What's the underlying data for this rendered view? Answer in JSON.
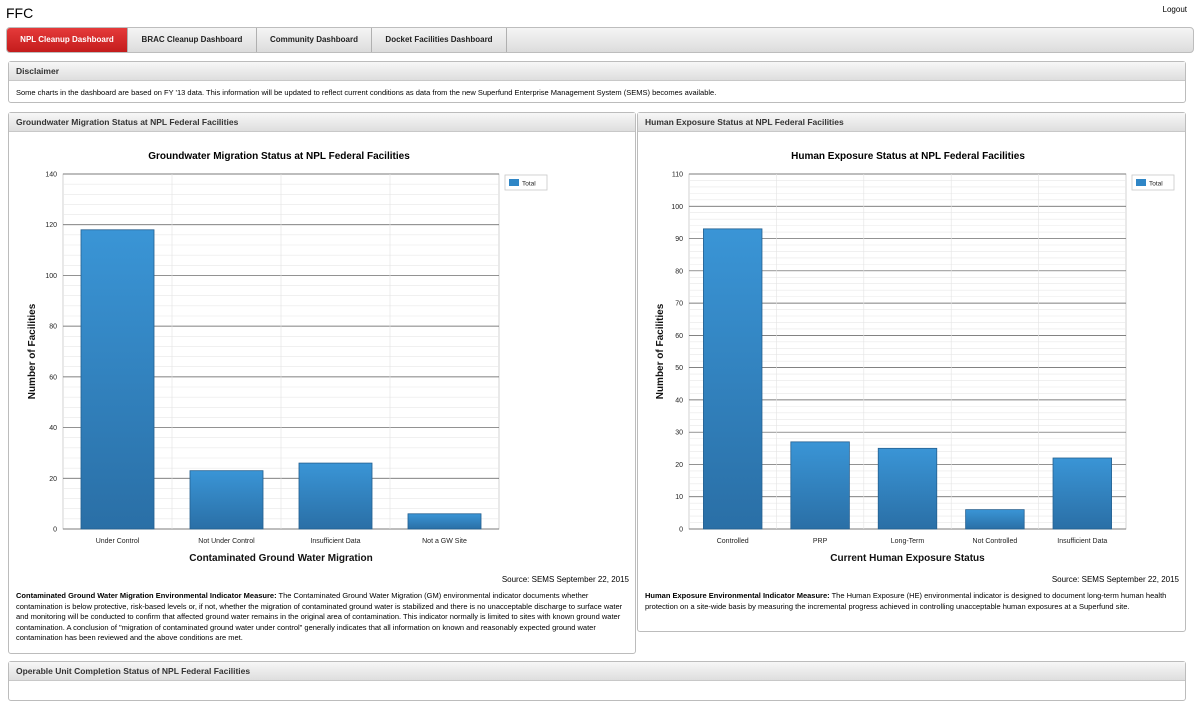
{
  "app": {
    "title": "FFC",
    "logout_label": "Logout"
  },
  "tabs": [
    {
      "label": "NPL Cleanup Dashboard",
      "active": true
    },
    {
      "label": "BRAC Cleanup Dashboard",
      "active": false
    },
    {
      "label": "Community Dashboard",
      "active": false
    },
    {
      "label": "Docket Facilities Dashboard",
      "active": false
    }
  ],
  "disclaimer": {
    "header": "Disclaimer",
    "text": "Some charts in the dashboard are based on FY '13 data. This information will be updated to reflect current conditions as data from the new Superfund Enterprise Management System (SEMS) becomes available."
  },
  "gw_panel": {
    "header": "Groundwater Migration Status at NPL Federal Facilities",
    "source": "Source: SEMS September 22, 2015",
    "desc_title": "Contaminated Ground Water Migration Environmental Indicator Measure:",
    "desc_text": " The Contaminated Ground Water Migration (GM) environmental indicator documents whether contamination is below protective, risk-based levels or, if not, whether the migration of contaminated ground water is stabilized and there is no unacceptable discharge to surface water and monitoring will be conducted to confirm that affected ground water remains in the original area of contamination. This indicator normally is limited to sites with known ground water contamination. A conclusion of \"migration of contaminated ground water under control\" generally indicates that all information on known and reasonably expected ground water contamination has been reviewed and the above conditions are met."
  },
  "he_panel": {
    "header": "Human Exposure Status at NPL Federal Facilities",
    "source": "Source: SEMS September 22, 2015",
    "desc_title": "Human Exposure Environmental Indicator Measure:",
    "desc_text": " The Human Exposure (HE) environmental indicator is designed to document long-term human health protection on a site-wide basis by measuring the incremental progress achieved in controlling unacceptable human exposures at a Superfund site."
  },
  "ou_panel": {
    "header": "Operable Unit Completion Status of NPL Federal Facilities"
  },
  "colors": {
    "bar": "#2f86c6",
    "bar_dark": "#2a6fa6",
    "tab_active": "#d32222"
  },
  "chart_data": [
    {
      "type": "bar",
      "title": "Groundwater Migration Status at NPL Federal Facilities",
      "xlabel": "Contaminated Ground Water Migration",
      "ylabel": "Number of Facilities",
      "categories": [
        "Under Control",
        "Not Under Control",
        "Insufficient Data",
        "Not a GW Site"
      ],
      "series": [
        {
          "name": "Total",
          "values": [
            118,
            23,
            26,
            6
          ]
        }
      ],
      "ylim": [
        0,
        140
      ],
      "yticks": [
        0,
        20,
        40,
        60,
        80,
        100,
        120,
        140
      ],
      "grid": true,
      "legend": "top-right"
    },
    {
      "type": "bar",
      "title": "Human Exposure Status at NPL Federal Facilities",
      "xlabel": "Current Human Exposure Status",
      "ylabel": "Number of Facilities",
      "categories": [
        "Controlled",
        "PRP",
        "Long-Term",
        "Not Controlled",
        "Insufficient Data"
      ],
      "series": [
        {
          "name": "Total",
          "values": [
            93,
            27,
            25,
            6,
            22
          ]
        }
      ],
      "ylim": [
        0,
        110
      ],
      "yticks": [
        0,
        10,
        20,
        30,
        40,
        50,
        60,
        70,
        80,
        90,
        100,
        110
      ],
      "grid": true,
      "legend": "top-right"
    }
  ]
}
